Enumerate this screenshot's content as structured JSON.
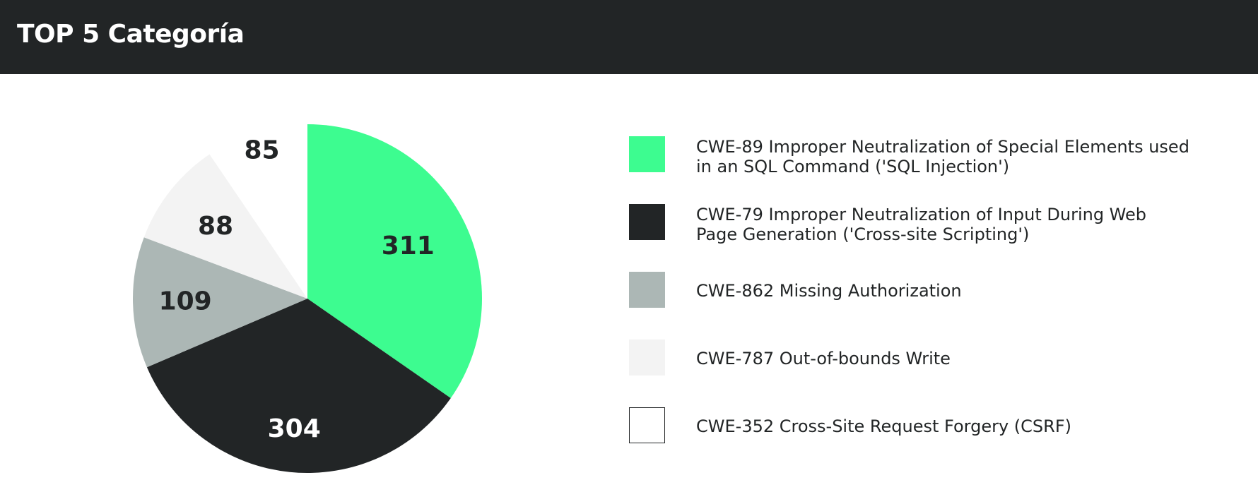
{
  "header": {
    "title": "TOP 5 Categoría"
  },
  "chart_data": {
    "type": "pie",
    "title": "TOP 5 Categoría",
    "slices": [
      {
        "label": "CWE-89 Improper Neutralization of Special Elements used in an SQL Command ('SQL Injection')",
        "value": 311,
        "color": "#3dfc90",
        "text_color": "#222526",
        "border": ""
      },
      {
        "label": "CWE-79 Improper Neutralization of Input During Web Page Generation ('Cross-site Scripting')",
        "value": 304,
        "color": "#222526",
        "text_color": "#ffffff",
        "border": ""
      },
      {
        "label": "CWE-862 Missing Authorization",
        "value": 109,
        "color": "#acb7b5",
        "text_color": "#222526",
        "border": ""
      },
      {
        "label": "CWE-787 Out-of-bounds Write",
        "value": 88,
        "color": "#f3f3f3",
        "text_color": "#222526",
        "border": ""
      },
      {
        "label": "CWE-352 Cross-Site Request Forgery (CSRF)",
        "value": 85,
        "color": "#ffffff",
        "text_color": "#222526",
        "border": "#222526"
      }
    ],
    "start_angle": "12 o'clock",
    "direction": "clockwise",
    "legend_position": "right"
  }
}
